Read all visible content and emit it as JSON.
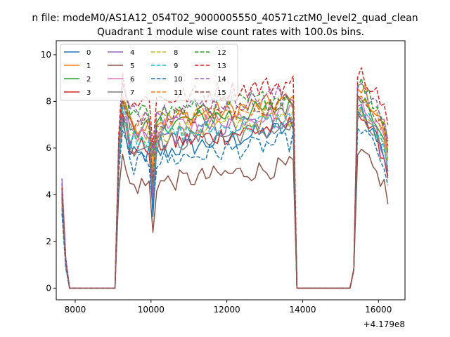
{
  "suptitle": "n file: modeM0/AS1A12_054T02_9000005550_40571cztM0_level2_quad_clean",
  "chart_data": {
    "type": "line",
    "title": "Quadrant 1 module wise count rates with 100.0s bins.",
    "xlabel": "",
    "ylabel": "",
    "x_offset_label": "+4.179e8",
    "xlim": [
      7500,
      16700
    ],
    "ylim": [
      -0.5,
      10.6
    ],
    "xticks": [
      8000,
      10000,
      12000,
      14000,
      16000
    ],
    "yticks": [
      0,
      2,
      4,
      6,
      8,
      10
    ],
    "grid": false,
    "legend": {
      "placement": "top-left",
      "ncol": 4
    },
    "x_segments": [
      {
        "start": 7650,
        "end": 9050,
        "active_until": 7750
      },
      {
        "start": 9050,
        "end": 13850,
        "active_until": 13750
      },
      {
        "start": 13850,
        "end": 15250,
        "active_until": 13850
      },
      {
        "start": 15250,
        "end": 16250,
        "active_until": 16250
      }
    ],
    "series": [
      {
        "name": "0",
        "color": "#1f77b4",
        "dash": "solid",
        "level": 5.5,
        "peak": 8.0,
        "end": 5.4,
        "spike0": 3.2
      },
      {
        "name": "1",
        "color": "#ff7f0e",
        "dash": "solid",
        "level": 6.9,
        "peak": 9.0,
        "end": 6.5,
        "spike0": 3.9
      },
      {
        "name": "2",
        "color": "#2ca02c",
        "dash": "solid",
        "level": 6.8,
        "peak": 8.6,
        "end": 6.4,
        "spike0": 3.8
      },
      {
        "name": "3",
        "color": "#d62728",
        "dash": "solid",
        "level": 5.9,
        "peak": 7.9,
        "end": 5.3,
        "spike0": 4.2
      },
      {
        "name": "4",
        "color": "#9467bd",
        "dash": "solid",
        "level": 6.2,
        "peak": 8.2,
        "end": 5.6,
        "spike0": 4.4
      },
      {
        "name": "5",
        "color": "#8c564b",
        "dash": "solid",
        "level": 4.3,
        "peak": 6.0,
        "end": 4.2,
        "spike0": 3.5
      },
      {
        "name": "6",
        "color": "#e377c2",
        "dash": "solid",
        "level": 6.6,
        "peak": 8.5,
        "end": 6.1,
        "spike0": 3.6
      },
      {
        "name": "7",
        "color": "#7f7f7f",
        "dash": "solid",
        "level": 6.0,
        "peak": 7.6,
        "end": 5.6,
        "spike0": 3.4
      },
      {
        "name": "8",
        "color": "#bcbd22",
        "dash": "dashed",
        "level": 6.4,
        "peak": 8.1,
        "end": 6.0,
        "spike0": 3.3
      },
      {
        "name": "9",
        "color": "#17becf",
        "dash": "dashed",
        "level": 6.3,
        "peak": 8.0,
        "end": 5.8,
        "spike0": 3.1
      },
      {
        "name": "10",
        "color": "#1f77b4",
        "dash": "dashed",
        "level": 5.2,
        "peak": 7.2,
        "end": 5.0,
        "spike0": 2.9
      },
      {
        "name": "11",
        "color": "#ff7f0e",
        "dash": "dashed",
        "level": 7.0,
        "peak": 8.6,
        "end": 6.6,
        "spike0": 3.7
      },
      {
        "name": "12",
        "color": "#2ca02c",
        "dash": "dashed",
        "level": 7.3,
        "peak": 9.0,
        "end": 7.0,
        "spike0": 3.8
      },
      {
        "name": "13",
        "color": "#d62728",
        "dash": "dashed",
        "level": 7.9,
        "peak": 9.5,
        "end": 7.6,
        "spike0": 4.0
      },
      {
        "name": "14",
        "color": "#9467bd",
        "dash": "dashed",
        "level": 7.4,
        "peak": 9.1,
        "end": 6.9,
        "spike0": 3.9
      },
      {
        "name": "15",
        "color": "#8c564b",
        "dash": "dashed",
        "level": 7.0,
        "peak": 8.7,
        "end": 6.7,
        "spike0": 3.6
      }
    ]
  }
}
